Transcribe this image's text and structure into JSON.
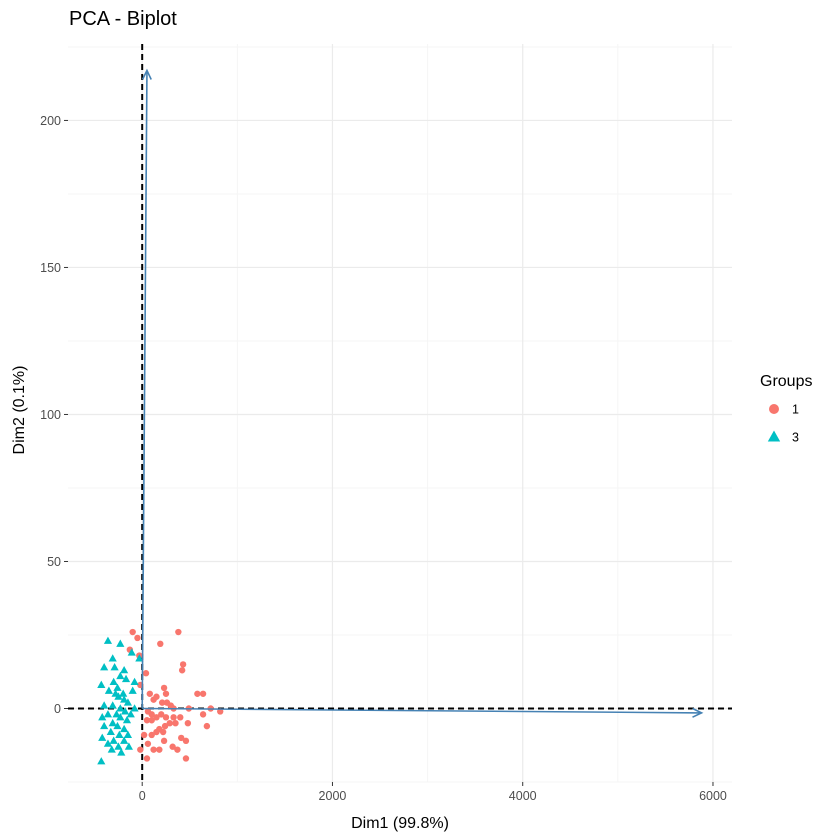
{
  "chart_data": {
    "type": "scatter",
    "title": "PCA - Biplot",
    "xlabel": "Dim1 (99.8%)",
    "ylabel": "Dim2 (0.1%)",
    "xlim": [
      -780,
      6200
    ],
    "ylim": [
      -25,
      226
    ],
    "x_ticks": [
      0,
      2000,
      4000,
      6000
    ],
    "x_tick_labels": [
      "0",
      "2000",
      "4000",
      "6000"
    ],
    "y_ticks": [
      0,
      50,
      100,
      150,
      200
    ],
    "y_tick_labels": [
      "0",
      "50",
      "100",
      "150",
      "200"
    ],
    "grid": true,
    "legend_title": "Groups",
    "legend_position": "right",
    "reference_lines": {
      "x": 0,
      "y": 0,
      "style": "dashed"
    },
    "series": [
      {
        "name": "1",
        "marker": "circle",
        "color": "#F8766D",
        "points": [
          [
            -100,
            26
          ],
          [
            -50,
            24
          ],
          [
            380,
            26
          ],
          [
            190,
            22
          ],
          [
            -30,
            18
          ],
          [
            -130,
            20
          ],
          [
            430,
            15
          ],
          [
            420,
            13
          ],
          [
            40,
            12
          ],
          [
            -20,
            8
          ],
          [
            230,
            7
          ],
          [
            250,
            5
          ],
          [
            580,
            5
          ],
          [
            640,
            5
          ],
          [
            80,
            5
          ],
          [
            150,
            4
          ],
          [
            120,
            3
          ],
          [
            210,
            2
          ],
          [
            260,
            2
          ],
          [
            300,
            1
          ],
          [
            330,
            0
          ],
          [
            490,
            0
          ],
          [
            720,
            0
          ],
          [
            820,
            -1
          ],
          [
            60,
            -1
          ],
          [
            100,
            -2
          ],
          [
            200,
            -2
          ],
          [
            640,
            -2
          ],
          [
            150,
            -3
          ],
          [
            250,
            -3
          ],
          [
            330,
            -3
          ],
          [
            400,
            -3
          ],
          [
            50,
            -4
          ],
          [
            100,
            -4
          ],
          [
            290,
            -5
          ],
          [
            350,
            -5
          ],
          [
            480,
            -5
          ],
          [
            240,
            -6
          ],
          [
            680,
            -6
          ],
          [
            180,
            -7
          ],
          [
            220,
            -8
          ],
          [
            150,
            -8
          ],
          [
            100,
            -9
          ],
          [
            20,
            -9
          ],
          [
            410,
            -10
          ],
          [
            460,
            -11
          ],
          [
            230,
            -11
          ],
          [
            60,
            -12
          ],
          [
            320,
            -13
          ],
          [
            180,
            -14
          ],
          [
            370,
            -14
          ],
          [
            120,
            -14
          ],
          [
            -20,
            -14
          ],
          [
            460,
            -17
          ],
          [
            50,
            -17
          ]
        ]
      },
      {
        "name": "3",
        "marker": "triangle",
        "color": "#00BFC4",
        "points": [
          [
            -360,
            23
          ],
          [
            -230,
            22
          ],
          [
            -110,
            19
          ],
          [
            -30,
            17
          ],
          [
            -310,
            17
          ],
          [
            -400,
            14
          ],
          [
            -290,
            14
          ],
          [
            -190,
            13
          ],
          [
            -230,
            11
          ],
          [
            -170,
            10
          ],
          [
            -300,
            9
          ],
          [
            -80,
            9
          ],
          [
            -430,
            8
          ],
          [
            -260,
            7
          ],
          [
            -100,
            6
          ],
          [
            -350,
            6
          ],
          [
            -200,
            5
          ],
          [
            -280,
            5
          ],
          [
            -250,
            4
          ],
          [
            -190,
            3
          ],
          [
            -150,
            2
          ],
          [
            -400,
            1
          ],
          [
            -310,
            1
          ],
          [
            -230,
            0
          ],
          [
            -80,
            0
          ],
          [
            -180,
            -1
          ],
          [
            -360,
            -2
          ],
          [
            -270,
            -2
          ],
          [
            -120,
            -2
          ],
          [
            -420,
            -3
          ],
          [
            -230,
            -3
          ],
          [
            -160,
            -4
          ],
          [
            -310,
            -5
          ],
          [
            -400,
            -6
          ],
          [
            -260,
            -6
          ],
          [
            -190,
            -7
          ],
          [
            -330,
            -8
          ],
          [
            -240,
            -9
          ],
          [
            -150,
            -9
          ],
          [
            -420,
            -10
          ],
          [
            -300,
            -11
          ],
          [
            -190,
            -11
          ],
          [
            -360,
            -12
          ],
          [
            -250,
            -13
          ],
          [
            -140,
            -13
          ],
          [
            -320,
            -14
          ],
          [
            -220,
            -15
          ],
          [
            -430,
            -18
          ]
        ]
      }
    ],
    "variables": [
      {
        "x": 50,
        "y": 217,
        "color": "#4682B4"
      },
      {
        "x": 5880,
        "y": -1.5,
        "color": "#4682B4"
      }
    ]
  }
}
